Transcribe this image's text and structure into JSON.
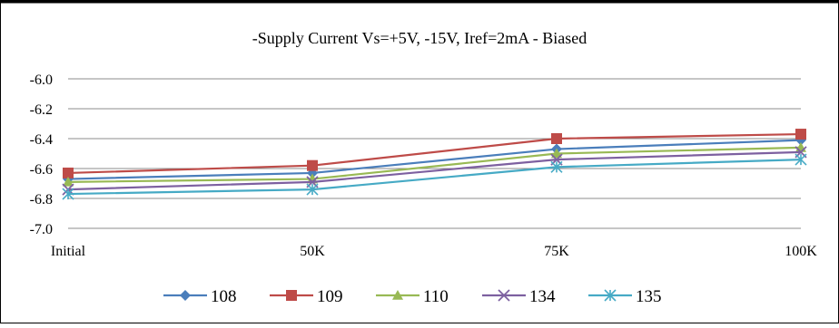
{
  "chart_data": {
    "type": "line",
    "title": "-Supply Current Vs=+5V, -15V, Iref=2mA - Biased",
    "xlabel": "",
    "ylabel": "",
    "categories": [
      "Initial",
      "50K",
      "75K",
      "100K"
    ],
    "ylim": [
      -7.0,
      -6.0
    ],
    "yticks": [
      "-6.0",
      "-6.2",
      "-6.4",
      "-6.6",
      "-6.8",
      "-7.0"
    ],
    "grid": true,
    "legend_position": "bottom",
    "series": [
      {
        "name": "108",
        "values": [
          -6.67,
          -6.63,
          -6.47,
          -6.41
        ],
        "color": "#4a7ebb",
        "marker": "diamond"
      },
      {
        "name": "109",
        "values": [
          -6.63,
          -6.58,
          -6.4,
          -6.37
        ],
        "color": "#be4b48",
        "marker": "square"
      },
      {
        "name": "110",
        "values": [
          -6.69,
          -6.67,
          -6.5,
          -6.46
        ],
        "color": "#98b954",
        "marker": "triangle"
      },
      {
        "name": "134",
        "values": [
          -6.74,
          -6.69,
          -6.54,
          -6.49
        ],
        "color": "#7d60a0",
        "marker": "x"
      },
      {
        "name": "135",
        "values": [
          -6.77,
          -6.74,
          -6.59,
          -6.54
        ],
        "color": "#46aac5",
        "marker": "asterisk"
      }
    ]
  }
}
